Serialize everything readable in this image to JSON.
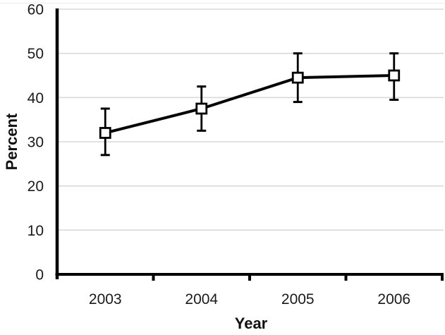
{
  "chart_data": {
    "type": "line",
    "title": "",
    "xlabel": "Year",
    "ylabel": "Percent",
    "categories": [
      "2003",
      "2004",
      "2005",
      "2006"
    ],
    "series": [
      {
        "name": "Percent",
        "values": [
          32,
          37.5,
          44.5,
          45
        ],
        "error_low": [
          27,
          32.5,
          39,
          39.5
        ],
        "error_high": [
          37.5,
          42.5,
          50,
          50
        ]
      }
    ],
    "ylim": [
      0,
      60
    ],
    "yticks": [
      0,
      10,
      20,
      30,
      40,
      50,
      60
    ],
    "grid": "horizontal",
    "legend": "none",
    "marker": "open-square",
    "colors": {
      "line": "#000000",
      "marker_fill": "#ffffff",
      "marker_stroke": "#000000",
      "grid": "#d9d9d9",
      "axis": "#000000",
      "text": "#1a1a1a",
      "background": "#ffffff"
    }
  }
}
